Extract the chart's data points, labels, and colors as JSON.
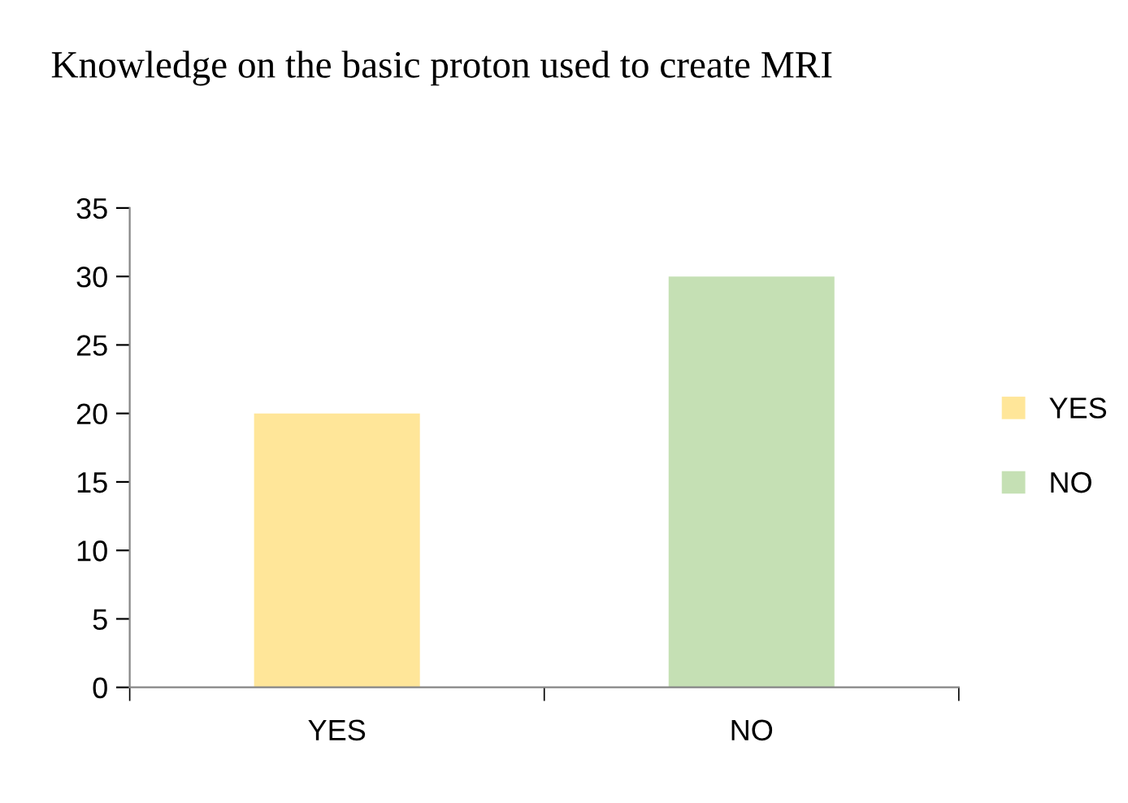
{
  "chart_data": {
    "type": "bar",
    "title": "Knowledge on the basic proton used to create MRI",
    "categories": [
      "YES",
      "NO"
    ],
    "stacked": true,
    "series": [
      {
        "name": "YES",
        "color": "#ffe699",
        "values": [
          20,
          null
        ]
      },
      {
        "name": "NO",
        "color": "#c5e0b4",
        "values": [
          null,
          30
        ]
      }
    ],
    "ylim": [
      0,
      35
    ],
    "yticks": [
      0,
      5,
      10,
      15,
      20,
      25,
      30,
      35
    ],
    "grid": false,
    "legend": "right"
  }
}
